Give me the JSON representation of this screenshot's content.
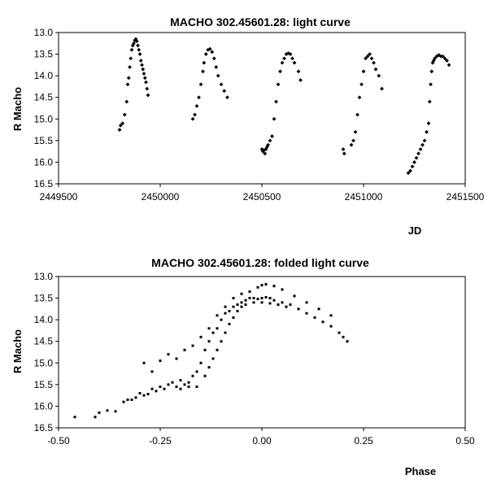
{
  "chart_data": [
    {
      "type": "scatter",
      "title": "MACHO 302.45601.28: light curve",
      "xlabel": "JD",
      "ylabel": "R Macho",
      "xlim": [
        2449500,
        2451500
      ],
      "ylim": [
        13.0,
        16.5
      ],
      "y_inverted": true,
      "grid": false,
      "x_ticks": [
        "2449500",
        "2450000",
        "2450500",
        "2451000",
        "2451500"
      ],
      "y_ticks": [
        "13.0",
        "13.5",
        "14.0",
        "14.5",
        "15.0",
        "15.5",
        "16.0",
        "16.5"
      ],
      "series": [
        {
          "points": [
            [
              2449800,
              15.25
            ],
            [
              2449805,
              15.15
            ],
            [
              2449815,
              15.1
            ],
            [
              2449825,
              14.9
            ],
            [
              2449835,
              14.6
            ],
            [
              2449840,
              14.2
            ],
            [
              2449845,
              14.05
            ],
            [
              2449850,
              13.8
            ],
            [
              2449855,
              13.6
            ],
            [
              2449860,
              13.4
            ],
            [
              2449865,
              13.3
            ],
            [
              2449870,
              13.25
            ],
            [
              2449875,
              13.18
            ],
            [
              2449880,
              13.15
            ],
            [
              2449885,
              13.2
            ],
            [
              2449890,
              13.3
            ],
            [
              2449895,
              13.4
            ],
            [
              2449900,
              13.5
            ],
            [
              2449905,
              13.65
            ],
            [
              2449910,
              13.75
            ],
            [
              2449915,
              13.85
            ],
            [
              2449920,
              13.95
            ],
            [
              2449925,
              14.05
            ],
            [
              2449930,
              14.15
            ],
            [
              2449935,
              14.3
            ],
            [
              2449940,
              14.45
            ],
            [
              2450160,
              15.0
            ],
            [
              2450170,
              14.9
            ],
            [
              2450180,
              14.7
            ],
            [
              2450190,
              14.5
            ],
            [
              2450200,
              14.2
            ],
            [
              2450210,
              13.9
            ],
            [
              2450215,
              13.7
            ],
            [
              2450225,
              13.5
            ],
            [
              2450235,
              13.4
            ],
            [
              2450245,
              13.38
            ],
            [
              2450255,
              13.45
            ],
            [
              2450265,
              13.6
            ],
            [
              2450275,
              13.8
            ],
            [
              2450285,
              14.0
            ],
            [
              2450300,
              14.2
            ],
            [
              2450315,
              14.35
            ],
            [
              2450330,
              14.5
            ],
            [
              2450500,
              15.7
            ],
            [
              2450505,
              15.75
            ],
            [
              2450510,
              15.72
            ],
            [
              2450515,
              15.8
            ],
            [
              2450520,
              15.7
            ],
            [
              2450525,
              15.65
            ],
            [
              2450530,
              15.6
            ],
            [
              2450540,
              15.5
            ],
            [
              2450550,
              15.4
            ],
            [
              2450560,
              15.0
            ],
            [
              2450570,
              14.6
            ],
            [
              2450580,
              14.2
            ],
            [
              2450590,
              13.9
            ],
            [
              2450600,
              13.7
            ],
            [
              2450610,
              13.6
            ],
            [
              2450620,
              13.5
            ],
            [
              2450630,
              13.48
            ],
            [
              2450640,
              13.5
            ],
            [
              2450650,
              13.6
            ],
            [
              2450660,
              13.7
            ],
            [
              2450680,
              13.9
            ],
            [
              2450690,
              14.1
            ],
            [
              2450900,
              15.7
            ],
            [
              2450905,
              15.8
            ],
            [
              2450940,
              15.6
            ],
            [
              2450950,
              15.5
            ],
            [
              2450960,
              15.3
            ],
            [
              2450970,
              14.9
            ],
            [
              2450980,
              14.5
            ],
            [
              2450990,
              14.2
            ],
            [
              2451000,
              13.9
            ],
            [
              2451010,
              13.6
            ],
            [
              2451020,
              13.55
            ],
            [
              2451030,
              13.5
            ],
            [
              2451040,
              13.6
            ],
            [
              2451050,
              13.7
            ],
            [
              2451060,
              13.85
            ],
            [
              2451075,
              14.0
            ],
            [
              2451090,
              14.3
            ],
            [
              2451220,
              16.25
            ],
            [
              2451230,
              16.2
            ],
            [
              2451240,
              16.1
            ],
            [
              2451250,
              16.0
            ],
            [
              2451260,
              15.9
            ],
            [
              2451270,
              15.8
            ],
            [
              2451280,
              15.7
            ],
            [
              2451290,
              15.6
            ],
            [
              2451300,
              15.5
            ],
            [
              2451310,
              15.3
            ],
            [
              2451320,
              15.1
            ],
            [
              2451325,
              14.6
            ],
            [
              2451330,
              14.2
            ],
            [
              2451335,
              13.9
            ],
            [
              2451340,
              13.7
            ],
            [
              2451345,
              13.65
            ],
            [
              2451350,
              13.6
            ],
            [
              2451360,
              13.55
            ],
            [
              2451370,
              13.52
            ],
            [
              2451380,
              13.55
            ],
            [
              2451390,
              13.55
            ],
            [
              2451400,
              13.6
            ],
            [
              2451410,
              13.65
            ],
            [
              2451420,
              13.75
            ]
          ]
        }
      ]
    },
    {
      "type": "scatter",
      "title": "MACHO 302.45601.28: folded light curve",
      "xlabel": "Phase",
      "ylabel": "R Macho",
      "xlim": [
        -0.5,
        0.5
      ],
      "ylim": [
        13.0,
        16.5
      ],
      "y_inverted": true,
      "grid": false,
      "x_ticks": [
        "-0.50",
        "-0.25",
        "0.00",
        "0.25",
        "0.50"
      ],
      "y_ticks": [
        "13.0",
        "13.5",
        "14.0",
        "14.5",
        "15.0",
        "15.5",
        "16.0",
        "16.5"
      ],
      "series": [
        {
          "points": [
            [
              -0.46,
              16.25
            ],
            [
              -0.41,
              16.25
            ],
            [
              -0.4,
              16.15
            ],
            [
              -0.38,
              16.1
            ],
            [
              -0.36,
              16.12
            ],
            [
              -0.34,
              15.9
            ],
            [
              -0.33,
              15.85
            ],
            [
              -0.32,
              15.85
            ],
            [
              -0.31,
              15.8
            ],
            [
              -0.3,
              15.7
            ],
            [
              -0.29,
              15.75
            ],
            [
              -0.28,
              15.72
            ],
            [
              -0.27,
              15.6
            ],
            [
              -0.26,
              15.65
            ],
            [
              -0.25,
              15.55
            ],
            [
              -0.24,
              15.6
            ],
            [
              -0.23,
              15.5
            ],
            [
              -0.22,
              15.45
            ],
            [
              -0.21,
              15.55
            ],
            [
              -0.2,
              15.4
            ],
            [
              -0.19,
              15.5
            ],
            [
              -0.18,
              15.45
            ],
            [
              -0.17,
              15.3
            ],
            [
              -0.16,
              15.2
            ],
            [
              -0.15,
              15.0
            ],
            [
              -0.14,
              14.7
            ],
            [
              -0.13,
              14.5
            ],
            [
              -0.12,
              14.3
            ],
            [
              -0.11,
              14.2
            ],
            [
              -0.1,
              14.0
            ],
            [
              -0.09,
              13.85
            ],
            [
              -0.08,
              13.8
            ],
            [
              -0.07,
              13.7
            ],
            [
              -0.06,
              13.65
            ],
            [
              -0.05,
              13.6
            ],
            [
              -0.04,
              13.55
            ],
            [
              -0.03,
              13.5
            ],
            [
              -0.02,
              13.5
            ],
            [
              -0.01,
              13.52
            ],
            [
              0.0,
              13.5
            ],
            [
              0.01,
              13.48
            ],
            [
              0.02,
              13.5
            ],
            [
              0.03,
              13.55
            ],
            [
              0.05,
              13.6
            ],
            [
              0.07,
              13.65
            ],
            [
              0.09,
              13.75
            ],
            [
              0.11,
              13.85
            ],
            [
              0.13,
              13.95
            ],
            [
              0.15,
              14.05
            ],
            [
              0.17,
              14.15
            ],
            [
              0.19,
              14.3
            ],
            [
              0.2,
              14.4
            ],
            [
              0.21,
              14.5
            ],
            [
              -0.29,
              15.0
            ],
            [
              -0.27,
              15.2
            ],
            [
              -0.25,
              14.95
            ],
            [
              -0.23,
              14.8
            ],
            [
              -0.21,
              14.9
            ],
            [
              -0.19,
              14.7
            ],
            [
              -0.17,
              14.6
            ],
            [
              -0.15,
              14.4
            ],
            [
              -0.13,
              14.2
            ],
            [
              -0.11,
              13.9
            ],
            [
              -0.09,
              13.7
            ],
            [
              -0.07,
              13.5
            ],
            [
              -0.05,
              13.4
            ],
            [
              -0.03,
              13.35
            ],
            [
              -0.01,
              13.25
            ],
            [
              0.0,
              13.2
            ],
            [
              0.01,
              13.18
            ],
            [
              0.03,
              13.22
            ],
            [
              0.05,
              13.3
            ],
            [
              0.08,
              13.45
            ],
            [
              0.11,
              13.6
            ],
            [
              0.14,
              13.75
            ],
            [
              0.17,
              13.9
            ],
            [
              -0.2,
              15.6
            ],
            [
              -0.18,
              15.55
            ],
            [
              -0.16,
              15.55
            ],
            [
              -0.14,
              15.3
            ],
            [
              -0.13,
              15.1
            ],
            [
              -0.12,
              14.9
            ],
            [
              -0.11,
              14.7
            ],
            [
              -0.1,
              14.5
            ],
            [
              -0.09,
              14.3
            ],
            [
              -0.08,
              14.1
            ],
            [
              -0.07,
              13.95
            ],
            [
              -0.06,
              13.8
            ],
            [
              -0.05,
              13.7
            ],
            [
              -0.04,
              13.65
            ],
            [
              -0.02,
              13.6
            ],
            [
              0.0,
              13.6
            ],
            [
              0.02,
              13.62
            ],
            [
              0.04,
              13.65
            ],
            [
              0.06,
              13.7
            ]
          ]
        }
      ]
    }
  ]
}
